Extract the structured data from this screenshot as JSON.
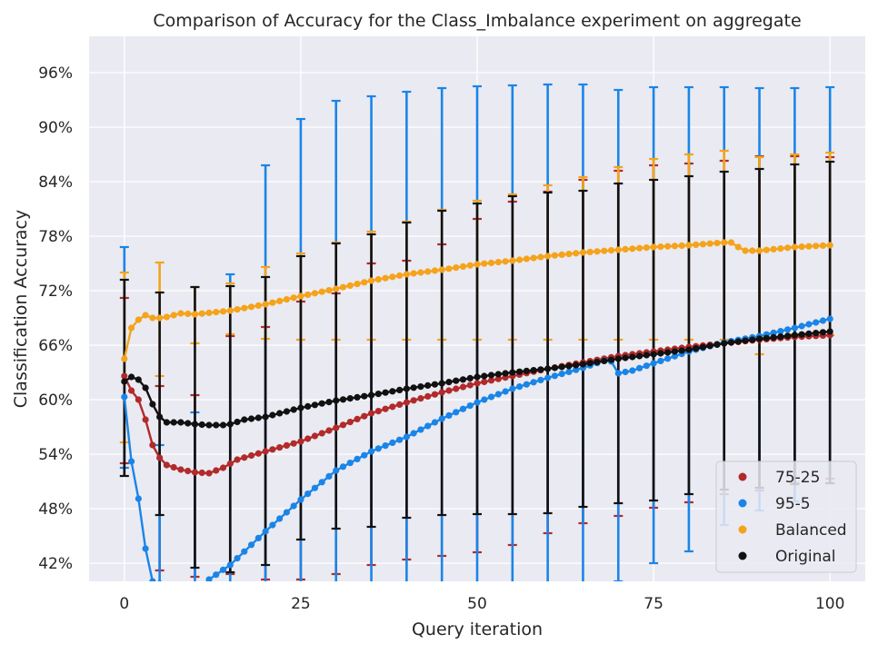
{
  "chart_data": {
    "type": "line",
    "title": "Comparison of Accuracy for the Class_Imbalance experiment on aggregate",
    "xlabel": "Query iteration",
    "ylabel": "Classification Accuracy",
    "xlim": [
      -5,
      105
    ],
    "ylim": [
      40,
      100
    ],
    "x_ticks": [
      0,
      25,
      50,
      75,
      100
    ],
    "x_tick_labels": [
      "0",
      "25",
      "50",
      "75",
      "100"
    ],
    "y_ticks": [
      42,
      48,
      54,
      60,
      66,
      72,
      78,
      84,
      90,
      96
    ],
    "y_tick_labels": [
      "42%",
      "48%",
      "54%",
      "60%",
      "66%",
      "72%",
      "78%",
      "84%",
      "90%",
      "96%"
    ],
    "grid": true,
    "legend_position": "lower right",
    "background": "#eaeaf2",
    "series": [
      {
        "name": "75-25",
        "color": "#b22a2a",
        "anchors": [
          [
            0,
            62.6
          ],
          [
            1,
            61.0
          ],
          [
            2,
            60.0
          ],
          [
            3,
            57.8
          ],
          [
            4,
            55.0
          ],
          [
            5,
            53.6
          ],
          [
            6,
            52.8
          ],
          [
            8,
            52.3
          ],
          [
            10,
            52.0
          ],
          [
            12,
            51.9
          ],
          [
            14,
            52.5
          ],
          [
            16,
            53.4
          ],
          [
            20,
            54.3
          ],
          [
            25,
            55.4
          ],
          [
            30,
            56.9
          ],
          [
            35,
            58.5
          ],
          [
            40,
            59.7
          ],
          [
            45,
            60.8
          ],
          [
            50,
            61.8
          ],
          [
            55,
            62.6
          ],
          [
            60,
            63.4
          ],
          [
            65,
            64.1
          ],
          [
            70,
            64.8
          ],
          [
            75,
            65.3
          ],
          [
            80,
            65.8
          ],
          [
            85,
            66.2
          ],
          [
            90,
            66.6
          ],
          [
            95,
            66.9
          ],
          [
            100,
            67.1
          ]
        ],
        "error_bars": [
          [
            0,
            53.0,
            71.2
          ],
          [
            5,
            41.2,
            61.5
          ],
          [
            10,
            40.5,
            60.5
          ],
          [
            15,
            40.8,
            67.0
          ],
          [
            20,
            40.2,
            68.0
          ],
          [
            25,
            40.2,
            70.8
          ],
          [
            30,
            40.8,
            71.7
          ],
          [
            35,
            41.8,
            75.0
          ],
          [
            40,
            42.4,
            75.3
          ],
          [
            45,
            42.8,
            77.1
          ],
          [
            50,
            43.2,
            79.9
          ],
          [
            55,
            44.0,
            81.8
          ],
          [
            60,
            45.3,
            82.9
          ],
          [
            65,
            46.4,
            84.2
          ],
          [
            70,
            47.2,
            85.2
          ],
          [
            75,
            48.1,
            85.8
          ],
          [
            80,
            48.7,
            86.0
          ],
          [
            85,
            49.6,
            86.3
          ],
          [
            90,
            50.0,
            86.8
          ],
          [
            95,
            50.8,
            86.8
          ],
          [
            100,
            51.3,
            86.7
          ]
        ]
      },
      {
        "name": "95-5",
        "color": "#1a85e8",
        "anchors": [
          [
            0,
            60.3
          ],
          [
            1,
            53.2
          ],
          [
            2,
            49.1
          ],
          [
            3,
            43.6
          ],
          [
            4,
            40.0
          ],
          [
            10,
            38.5
          ],
          [
            12,
            40.2
          ],
          [
            15,
            41.8
          ],
          [
            20,
            45.5
          ],
          [
            25,
            49.0
          ],
          [
            30,
            52.2
          ],
          [
            35,
            54.3
          ],
          [
            40,
            55.9
          ],
          [
            45,
            57.9
          ],
          [
            50,
            59.7
          ],
          [
            55,
            61.2
          ],
          [
            60,
            62.4
          ],
          [
            65,
            63.5
          ],
          [
            68,
            64.3
          ],
          [
            69,
            64.2
          ],
          [
            70,
            62.9
          ],
          [
            72,
            63.2
          ],
          [
            75,
            64.0
          ],
          [
            80,
            65.3
          ],
          [
            85,
            66.3
          ],
          [
            90,
            67.0
          ],
          [
            95,
            67.9
          ],
          [
            100,
            68.9
          ]
        ],
        "error_bars": [
          [
            0,
            52.5,
            76.8
          ],
          [
            5,
            38.0,
            55.0
          ],
          [
            10,
            38.0,
            58.6
          ],
          [
            15,
            39.0,
            73.8
          ],
          [
            20,
            39.0,
            85.8
          ],
          [
            25,
            39.0,
            90.9
          ],
          [
            30,
            39.0,
            92.9
          ],
          [
            35,
            39.0,
            93.4
          ],
          [
            40,
            39.0,
            93.9
          ],
          [
            45,
            39.0,
            94.3
          ],
          [
            50,
            39.0,
            94.5
          ],
          [
            55,
            39.0,
            94.6
          ],
          [
            60,
            39.0,
            94.7
          ],
          [
            65,
            39.0,
            94.7
          ],
          [
            70,
            40.0,
            94.1
          ],
          [
            75,
            42.0,
            94.4
          ],
          [
            80,
            43.3,
            94.4
          ],
          [
            85,
            46.2,
            94.4
          ],
          [
            90,
            47.8,
            94.3
          ],
          [
            95,
            48.8,
            94.3
          ],
          [
            100,
            50.8,
            94.4
          ]
        ]
      },
      {
        "name": "Balanced",
        "color": "#f5a31a",
        "anchors": [
          [
            0,
            64.5
          ],
          [
            1,
            67.9
          ],
          [
            2,
            68.8
          ],
          [
            3,
            69.3
          ],
          [
            4,
            69.0
          ],
          [
            5,
            69.0
          ],
          [
            6,
            69.1
          ],
          [
            8,
            69.5
          ],
          [
            10,
            69.4
          ],
          [
            15,
            69.8
          ],
          [
            20,
            70.5
          ],
          [
            25,
            71.4
          ],
          [
            30,
            72.2
          ],
          [
            35,
            73.1
          ],
          [
            40,
            73.8
          ],
          [
            45,
            74.3
          ],
          [
            50,
            74.9
          ],
          [
            55,
            75.3
          ],
          [
            60,
            75.8
          ],
          [
            65,
            76.2
          ],
          [
            70,
            76.5
          ],
          [
            75,
            76.8
          ],
          [
            80,
            77.0
          ],
          [
            85,
            77.3
          ],
          [
            86,
            77.3
          ],
          [
            87,
            76.8
          ],
          [
            88,
            76.4
          ],
          [
            90,
            76.4
          ],
          [
            95,
            76.8
          ],
          [
            100,
            77.0
          ]
        ],
        "error_bars": [
          [
            0,
            55.3,
            74.0
          ],
          [
            5,
            62.6,
            75.1
          ],
          [
            10,
            66.2,
            72.4
          ],
          [
            15,
            67.2,
            72.8
          ],
          [
            20,
            66.7,
            74.6
          ],
          [
            25,
            66.6,
            76.1
          ],
          [
            30,
            66.6,
            77.3
          ],
          [
            35,
            66.6,
            78.5
          ],
          [
            40,
            66.6,
            79.6
          ],
          [
            45,
            66.6,
            80.9
          ],
          [
            50,
            66.6,
            81.9
          ],
          [
            55,
            66.6,
            82.6
          ],
          [
            60,
            66.6,
            83.6
          ],
          [
            65,
            66.6,
            84.5
          ],
          [
            70,
            66.6,
            85.6
          ],
          [
            75,
            66.6,
            86.5
          ],
          [
            80,
            66.6,
            87.0
          ],
          [
            85,
            66.6,
            87.4
          ],
          [
            90,
            65.0,
            86.7
          ],
          [
            95,
            67.2,
            87.0
          ],
          [
            100,
            67.1,
            87.2
          ]
        ]
      },
      {
        "name": "Original",
        "color": "#111111",
        "anchors": [
          [
            0,
            62.0
          ],
          [
            1,
            62.5
          ],
          [
            2,
            62.2
          ],
          [
            3,
            61.3
          ],
          [
            4,
            59.5
          ],
          [
            5,
            58.1
          ],
          [
            6,
            57.5
          ],
          [
            8,
            57.5
          ],
          [
            10,
            57.3
          ],
          [
            12,
            57.2
          ],
          [
            14,
            57.2
          ],
          [
            15,
            57.3
          ],
          [
            17,
            57.8
          ],
          [
            20,
            58.1
          ],
          [
            25,
            59.1
          ],
          [
            30,
            59.9
          ],
          [
            35,
            60.5
          ],
          [
            40,
            61.2
          ],
          [
            45,
            61.8
          ],
          [
            50,
            62.5
          ],
          [
            55,
            63.0
          ],
          [
            60,
            63.4
          ],
          [
            65,
            63.9
          ],
          [
            70,
            64.5
          ],
          [
            75,
            65.0
          ],
          [
            80,
            65.5
          ],
          [
            85,
            66.2
          ],
          [
            90,
            66.7
          ],
          [
            95,
            67.1
          ],
          [
            100,
            67.5
          ]
        ],
        "error_bars": [
          [
            0,
            51.6,
            73.2
          ],
          [
            5,
            47.3,
            71.8
          ],
          [
            10,
            41.5,
            72.4
          ],
          [
            15,
            41.0,
            72.5
          ],
          [
            20,
            41.8,
            73.5
          ],
          [
            25,
            44.6,
            75.8
          ],
          [
            30,
            45.8,
            77.2
          ],
          [
            35,
            46.0,
            78.2
          ],
          [
            40,
            47.0,
            79.5
          ],
          [
            45,
            47.3,
            80.8
          ],
          [
            50,
            47.4,
            81.6
          ],
          [
            55,
            47.4,
            82.4
          ],
          [
            60,
            47.5,
            82.8
          ],
          [
            65,
            48.2,
            83.0
          ],
          [
            70,
            48.6,
            83.8
          ],
          [
            75,
            48.9,
            84.2
          ],
          [
            80,
            49.6,
            84.6
          ],
          [
            85,
            50.1,
            85.1
          ],
          [
            90,
            50.3,
            85.4
          ],
          [
            95,
            50.7,
            85.9
          ],
          [
            100,
            50.8,
            86.2
          ]
        ]
      }
    ]
  }
}
